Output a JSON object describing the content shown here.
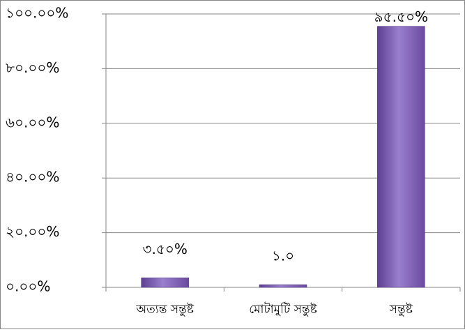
{
  "chart_data": {
    "type": "bar",
    "categories": [
      "অত্যন্ত সন্তুষ্ট",
      "মোটামুটি সন্তুষ্ট",
      "সন্তুষ্ট"
    ],
    "values": [
      3.5,
      1.0,
      95.5
    ],
    "value_labels": [
      "৩.৫০%",
      "১.০",
      "৯৫.৫০%"
    ],
    "color": "#7b5bb0",
    "ylim": [
      0,
      100
    ],
    "yticks": [
      {
        "value": 0,
        "label": "০.০০%"
      },
      {
        "value": 20,
        "label": "২০.০০%"
      },
      {
        "value": 40,
        "label": "৪০.০০%"
      },
      {
        "value": 60,
        "label": "৬০.০০%"
      },
      {
        "value": 80,
        "label": "৮০.০০%"
      },
      {
        "value": 100,
        "label": "১০০.০০%"
      }
    ],
    "grid": true
  }
}
